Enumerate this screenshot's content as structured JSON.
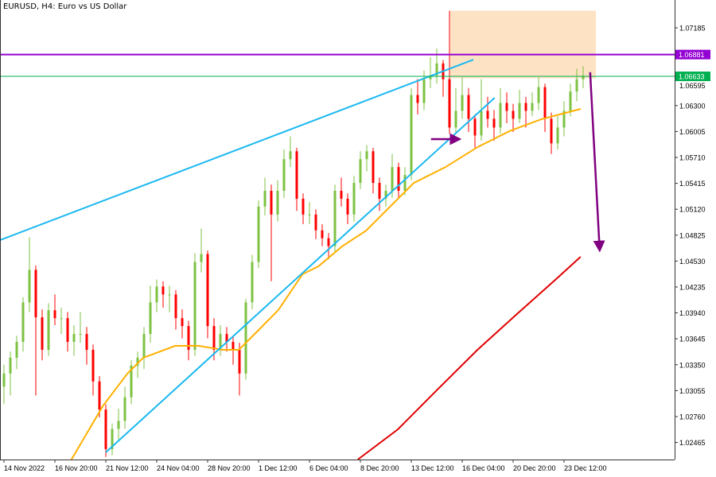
{
  "header": {
    "title": "EURUSD, H4:  Euro vs US Dollar"
  },
  "chart_data": {
    "type": "candlestick",
    "symbol": "EURUSD",
    "timeframe": "H4",
    "title": "EURUSD, H4:  Euro vs US Dollar",
    "ylim": [
      1.02271,
      1.07502
    ],
    "y_ticks": [
      "1.07185",
      "1.06595",
      "1.06300",
      "1.06005",
      "1.05710",
      "1.05415",
      "1.05120",
      "1.04825",
      "1.04530",
      "1.04235",
      "1.03940",
      "1.03645",
      "1.03350",
      "1.03055",
      "1.02760",
      "1.02465"
    ],
    "x_ticks": [
      {
        "index": 0,
        "label": "14 Nov 2022"
      },
      {
        "index": 8,
        "label": "16 Nov 20:00"
      },
      {
        "index": 16,
        "label": "21 Nov 12:00"
      },
      {
        "index": 24,
        "label": "24 Nov 04:00"
      },
      {
        "index": 32,
        "label": "28 Nov 20:00"
      },
      {
        "index": 40,
        "label": "1 Dec 12:00"
      },
      {
        "index": 48,
        "label": "6 Dec 04:00"
      },
      {
        "index": 56,
        "label": "8 Dec 20:00"
      },
      {
        "index": 64,
        "label": "13 Dec 12:00"
      },
      {
        "index": 72,
        "label": "16 Dec 04:00"
      },
      {
        "index": 80,
        "label": "20 Dec 20:00"
      },
      {
        "index": 88,
        "label": "23 Dec 12:00"
      }
    ],
    "colors": {
      "bull": "#7dc242",
      "bear": "#ff0000",
      "ma_fast": "#ffb000",
      "ma_slow": "#e00000",
      "trendline": "#1ab8f0",
      "resistance": "#9400d3",
      "current_price": "#00b050",
      "zone": "#fde3c4",
      "arrow": "#800080"
    },
    "ohlc": [
      [
        1.031,
        1.0335,
        1.029,
        1.0325
      ],
      [
        1.0325,
        1.035,
        1.03,
        1.0343
      ],
      [
        1.0343,
        1.0368,
        1.033,
        1.0361
      ],
      [
        1.0361,
        1.0412,
        1.035,
        1.0406
      ],
      [
        1.0406,
        1.048,
        1.0395,
        1.0443
      ],
      [
        1.0443,
        1.0448,
        1.03,
        1.0389
      ],
      [
        1.0389,
        1.0398,
        1.034,
        1.0352
      ],
      [
        1.0352,
        1.0405,
        1.0345,
        1.0397
      ],
      [
        1.0397,
        1.0415,
        1.038,
        1.0388
      ],
      [
        1.0388,
        1.04,
        1.037,
        1.0388
      ],
      [
        1.0388,
        1.0395,
        1.035,
        1.0361
      ],
      [
        1.0361,
        1.038,
        1.0345,
        1.037
      ],
      [
        1.037,
        1.0395,
        1.036,
        1.037
      ],
      [
        1.037,
        1.0378,
        1.0335,
        1.0352
      ],
      [
        1.0352,
        1.0358,
        1.03,
        1.0316
      ],
      [
        1.0316,
        1.0322,
        1.0275,
        1.0284
      ],
      [
        1.0284,
        1.029,
        1.023,
        1.0239
      ],
      [
        1.0239,
        1.0268,
        1.0232,
        1.0262
      ],
      [
        1.0262,
        1.0285,
        1.025,
        1.0271
      ],
      [
        1.0271,
        1.031,
        1.0262,
        1.0298
      ],
      [
        1.0298,
        1.034,
        1.029,
        1.0334
      ],
      [
        1.0334,
        1.035,
        1.032,
        1.0343
      ],
      [
        1.0343,
        1.0378,
        1.033,
        1.037
      ],
      [
        1.037,
        1.0425,
        1.036,
        1.0406
      ],
      [
        1.0406,
        1.0432,
        1.0395,
        1.0424
      ],
      [
        1.0424,
        1.043,
        1.04,
        1.0415
      ],
      [
        1.0415,
        1.0425,
        1.0395,
        1.0415
      ],
      [
        1.0415,
        1.042,
        1.0375,
        1.0388
      ],
      [
        1.0388,
        1.0398,
        1.0365,
        1.0379
      ],
      [
        1.0379,
        1.0385,
        1.034,
        1.0352
      ],
      [
        1.0352,
        1.0462,
        1.0345,
        1.0452
      ],
      [
        1.0452,
        1.049,
        1.044,
        1.0461
      ],
      [
        1.0461,
        1.0465,
        1.0365,
        1.0379
      ],
      [
        1.0379,
        1.0388,
        1.034,
        1.0352
      ],
      [
        1.0352,
        1.038,
        1.0345,
        1.037
      ],
      [
        1.037,
        1.0378,
        1.035,
        1.0361
      ],
      [
        1.0361,
        1.0368,
        1.0335,
        1.0352
      ],
      [
        1.0352,
        1.036,
        1.03,
        1.0325
      ],
      [
        1.0325,
        1.041,
        1.0318,
        1.0406
      ],
      [
        1.0406,
        1.046,
        1.0398,
        1.0452
      ],
      [
        1.0452,
        1.0522,
        1.0445,
        1.0515
      ],
      [
        1.0515,
        1.0548,
        1.0505,
        1.0533
      ],
      [
        1.0533,
        1.054,
        1.043,
        1.0506
      ],
      [
        1.0506,
        1.0545,
        1.0498,
        1.0533
      ],
      [
        1.0533,
        1.058,
        1.0525,
        1.0569
      ],
      [
        1.0569,
        1.0595,
        1.056,
        1.0578
      ],
      [
        1.0578,
        1.0582,
        1.051,
        1.0524
      ],
      [
        1.0524,
        1.053,
        1.0495,
        1.0506
      ],
      [
        1.0506,
        1.052,
        1.0495,
        1.0506
      ],
      [
        1.0506,
        1.0512,
        1.0478,
        1.0488
      ],
      [
        1.0488,
        1.0495,
        1.047,
        1.0479
      ],
      [
        1.0479,
        1.0485,
        1.0455,
        1.047
      ],
      [
        1.047,
        1.054,
        1.0462,
        1.0533
      ],
      [
        1.0533,
        1.0548,
        1.0515,
        1.0524
      ],
      [
        1.0524,
        1.053,
        1.0495,
        1.0506
      ],
      [
        1.0506,
        1.055,
        1.0498,
        1.0542
      ],
      [
        1.0542,
        1.0578,
        1.0535,
        1.0569
      ],
      [
        1.0569,
        1.0585,
        1.0555,
        1.0578
      ],
      [
        1.0578,
        1.0582,
        1.053,
        1.0542
      ],
      [
        1.0542,
        1.0548,
        1.051,
        1.0524
      ],
      [
        1.0524,
        1.054,
        1.0515,
        1.0533
      ],
      [
        1.0533,
        1.0575,
        1.0525,
        1.056
      ],
      [
        1.056,
        1.0565,
        1.0525,
        1.0533
      ],
      [
        1.0533,
        1.056,
        1.0528,
        1.0551
      ],
      [
        1.0551,
        1.065,
        1.0545,
        1.0642
      ],
      [
        1.0642,
        1.066,
        1.062,
        1.0633
      ],
      [
        1.0633,
        1.067,
        1.0625,
        1.066
      ],
      [
        1.066,
        1.0685,
        1.065,
        1.0664
      ],
      [
        1.0664,
        1.0695,
        1.0655,
        1.0678
      ],
      [
        1.0678,
        1.0682,
        1.064,
        1.066
      ],
      [
        1.066,
        1.0738,
        1.0598,
        1.0605
      ],
      [
        1.0605,
        1.065,
        1.0598,
        1.0624
      ],
      [
        1.0624,
        1.0662,
        1.0615,
        1.0642
      ],
      [
        1.0642,
        1.065,
        1.06,
        1.0615
      ],
      [
        1.0615,
        1.062,
        1.0582,
        1.0596
      ],
      [
        1.0596,
        1.066,
        1.059,
        1.0624
      ],
      [
        1.0624,
        1.064,
        1.0605,
        1.0615
      ],
      [
        1.0615,
        1.0625,
        1.059,
        1.0605
      ],
      [
        1.0605,
        1.065,
        1.0598,
        1.0633
      ],
      [
        1.0633,
        1.0645,
        1.061,
        1.0624
      ],
      [
        1.0624,
        1.0632,
        1.06,
        1.0615
      ],
      [
        1.0615,
        1.0648,
        1.061,
        1.0633
      ],
      [
        1.0633,
        1.064,
        1.0605,
        1.0624
      ],
      [
        1.0624,
        1.0645,
        1.0618,
        1.0633
      ],
      [
        1.0633,
        1.0662,
        1.0625,
        1.0651
      ],
      [
        1.0651,
        1.0655,
        1.06,
        1.0615
      ],
      [
        1.0615,
        1.0622,
        1.0575,
        1.0587
      ],
      [
        1.0587,
        1.0618,
        1.058,
        1.0605
      ],
      [
        1.0605,
        1.0635,
        1.0595,
        1.0624
      ],
      [
        1.0624,
        1.0655,
        1.0618,
        1.0646
      ],
      [
        1.0646,
        1.0672,
        1.0635,
        1.066
      ],
      [
        1.066,
        1.0675,
        1.065,
        1.0664
      ]
    ],
    "ma_fast": [
      [
        10.6,
        1.02271
      ],
      [
        15.6,
        1.02887
      ],
      [
        19.4,
        1.03249
      ],
      [
        21.9,
        1.0343
      ],
      [
        26.9,
        1.03565
      ],
      [
        30.6,
        1.03565
      ],
      [
        34.4,
        1.0352
      ],
      [
        36.9,
        1.0352
      ],
      [
        39.4,
        1.03701
      ],
      [
        43.1,
        1.03972
      ],
      [
        46.9,
        1.0438
      ],
      [
        49.4,
        1.0447
      ],
      [
        53.1,
        1.04696
      ],
      [
        56.9,
        1.04877
      ],
      [
        59.4,
        1.05058
      ],
      [
        64.4,
        1.0542
      ],
      [
        69.4,
        1.05601
      ],
      [
        74.4,
        1.05827
      ],
      [
        79.4,
        1.06009
      ],
      [
        84.4,
        1.06144
      ],
      [
        90.6,
        1.06262
      ]
    ],
    "ma_slow": [
      [
        55.6,
        1.02271
      ],
      [
        61.9,
        1.02615
      ],
      [
        68.1,
        1.03067
      ],
      [
        74.4,
        1.0352
      ],
      [
        80.6,
        1.03927
      ],
      [
        86.9,
        1.04334
      ],
      [
        90.6,
        1.04579
      ]
    ],
    "trendlines": [
      {
        "from": [
          -0.6,
          1.04769
        ],
        "to": [
          73.75,
          1.06823
        ]
      },
      {
        "from": [
          16.0,
          1.02352
        ],
        "to": [
          77.1,
          1.06389
        ]
      }
    ],
    "horizontal_lines": [
      {
        "price": 1.06881,
        "label": "1.06881",
        "color": "#9400d3"
      },
      {
        "price": 1.06633,
        "label": "1.06633",
        "color": "#00b050"
      }
    ],
    "zone": {
      "from_index": 70.1,
      "to_index": 93,
      "price_top": 1.0738,
      "price_bottom": 1.0661
    },
    "arrows": [
      {
        "direction": "right",
        "from": [
          67.1,
          1.05918
        ],
        "to": [
          71.6,
          1.05918
        ]
      },
      {
        "direction": "down",
        "from": [
          92.1,
          1.0668
        ],
        "to": [
          93.6,
          1.0465
        ]
      }
    ]
  }
}
